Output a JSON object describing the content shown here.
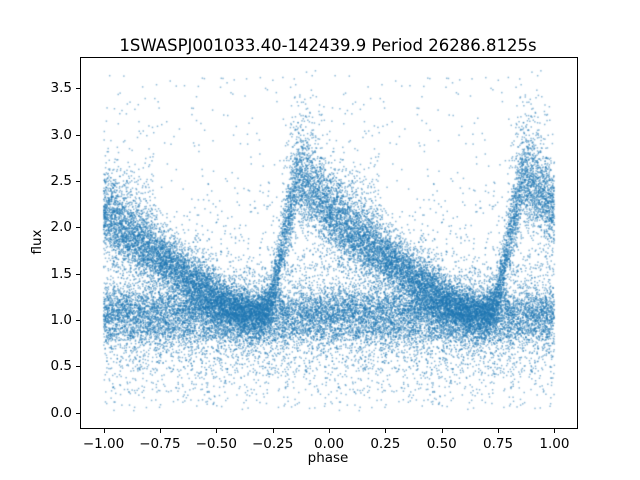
{
  "figure": {
    "background_color": "#ffffff",
    "spine_color": "#000000"
  },
  "chart_data": {
    "type": "scatter",
    "title": "1SWASPJ001033.40-142439.9 Period 26286.8125s",
    "xlabel": "phase",
    "ylabel": "flux",
    "xlim": [
      -1.1,
      1.1
    ],
    "ylim": [
      -0.164,
      3.828
    ],
    "x_ticks": [
      -1.0,
      -0.75,
      -0.5,
      -0.25,
      0.0,
      0.25,
      0.5,
      0.75,
      1.0
    ],
    "x_tick_labels": [
      "−1.00",
      "−0.75",
      "−0.50",
      "−0.25",
      "0.00",
      "0.25",
      "0.50",
      "0.75",
      "1.00"
    ],
    "y_ticks": [
      0.0,
      0.5,
      1.0,
      1.5,
      2.0,
      2.5,
      3.0,
      3.5
    ],
    "y_tick_labels": [
      "0.0",
      "0.5",
      "1.0",
      "1.5",
      "2.0",
      "2.5",
      "3.0",
      "3.5"
    ],
    "grid": false,
    "legend": null,
    "marker_color": "#1f77b4",
    "marker_alpha": 0.5,
    "marker_size_px": 1.5,
    "phase_data_range": [
      -1.0,
      1.0
    ],
    "phase_copies": [
      0,
      -1
    ],
    "series_description": "phase-folded light curve scatter, same data plotted over [0,1] and duplicated at phase-1",
    "mean_flux_profile": {
      "phase": [
        0.0,
        0.05,
        0.1,
        0.15,
        0.2,
        0.25,
        0.3,
        0.35,
        0.4,
        0.45,
        0.5,
        0.55,
        0.6,
        0.65,
        0.7,
        0.74,
        0.78,
        0.82,
        0.86,
        0.9,
        0.95,
        1.0
      ],
      "flux": [
        2.15,
        2.04,
        1.94,
        1.85,
        1.76,
        1.68,
        1.59,
        1.5,
        1.41,
        1.33,
        1.24,
        1.16,
        1.09,
        1.04,
        1.05,
        1.2,
        1.6,
        2.1,
        2.5,
        2.45,
        2.3,
        2.15
      ]
    },
    "scatter_model": {
      "n_per_copy": 18000,
      "seed": 7,
      "flux_clip": [
        0.02,
        3.7
      ],
      "ridge": {
        "weight": 0.52,
        "sigma_base": 0.12,
        "sigma_slope": 0.07,
        "skew_prob": 0.22,
        "skew_scale": 0.28,
        "skew_min_mean": 1.7
      },
      "band": {
        "weight": 0.355,
        "center": 1.07,
        "sigma": 0.135,
        "up_tail_prob": 0.25,
        "up_tail_scale": 0.32
      },
      "lower_tail": {
        "weight": 0.105,
        "start": 0.92,
        "scale": 0.3
      },
      "outliers": {
        "weight": 0.02,
        "min": 0.2,
        "max": 3.65
      }
    }
  }
}
